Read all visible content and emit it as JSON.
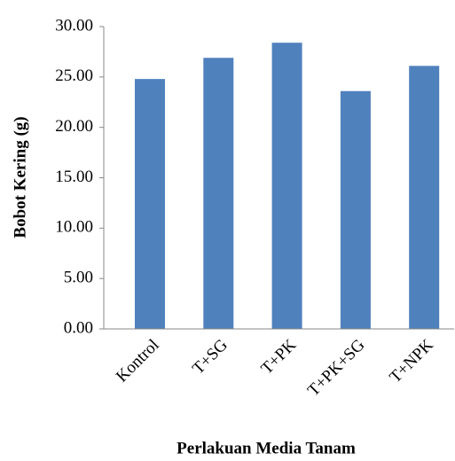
{
  "chart_data": {
    "type": "bar",
    "x_label": "Perlakuan Media Tanam",
    "y_label": "Bobot Kering  (g)",
    "categories": [
      "Kontrol",
      "T+SG",
      "T+PK",
      "T+PK+SG",
      "T+NPK"
    ],
    "values": [
      24.8,
      26.9,
      28.4,
      23.6,
      26.1
    ],
    "color": "#4f81bd",
    "ylim": [
      0,
      30
    ],
    "yticks": [
      {
        "value": 0,
        "label": "0.00"
      },
      {
        "value": 5,
        "label": "5.00"
      },
      {
        "value": 10,
        "label": "10.00"
      },
      {
        "value": 15,
        "label": "15.00"
      },
      {
        "value": 20,
        "label": "20.00"
      },
      {
        "value": 25,
        "label": "25.00"
      },
      {
        "value": 30,
        "label": "30.00"
      }
    ],
    "grid": false
  }
}
